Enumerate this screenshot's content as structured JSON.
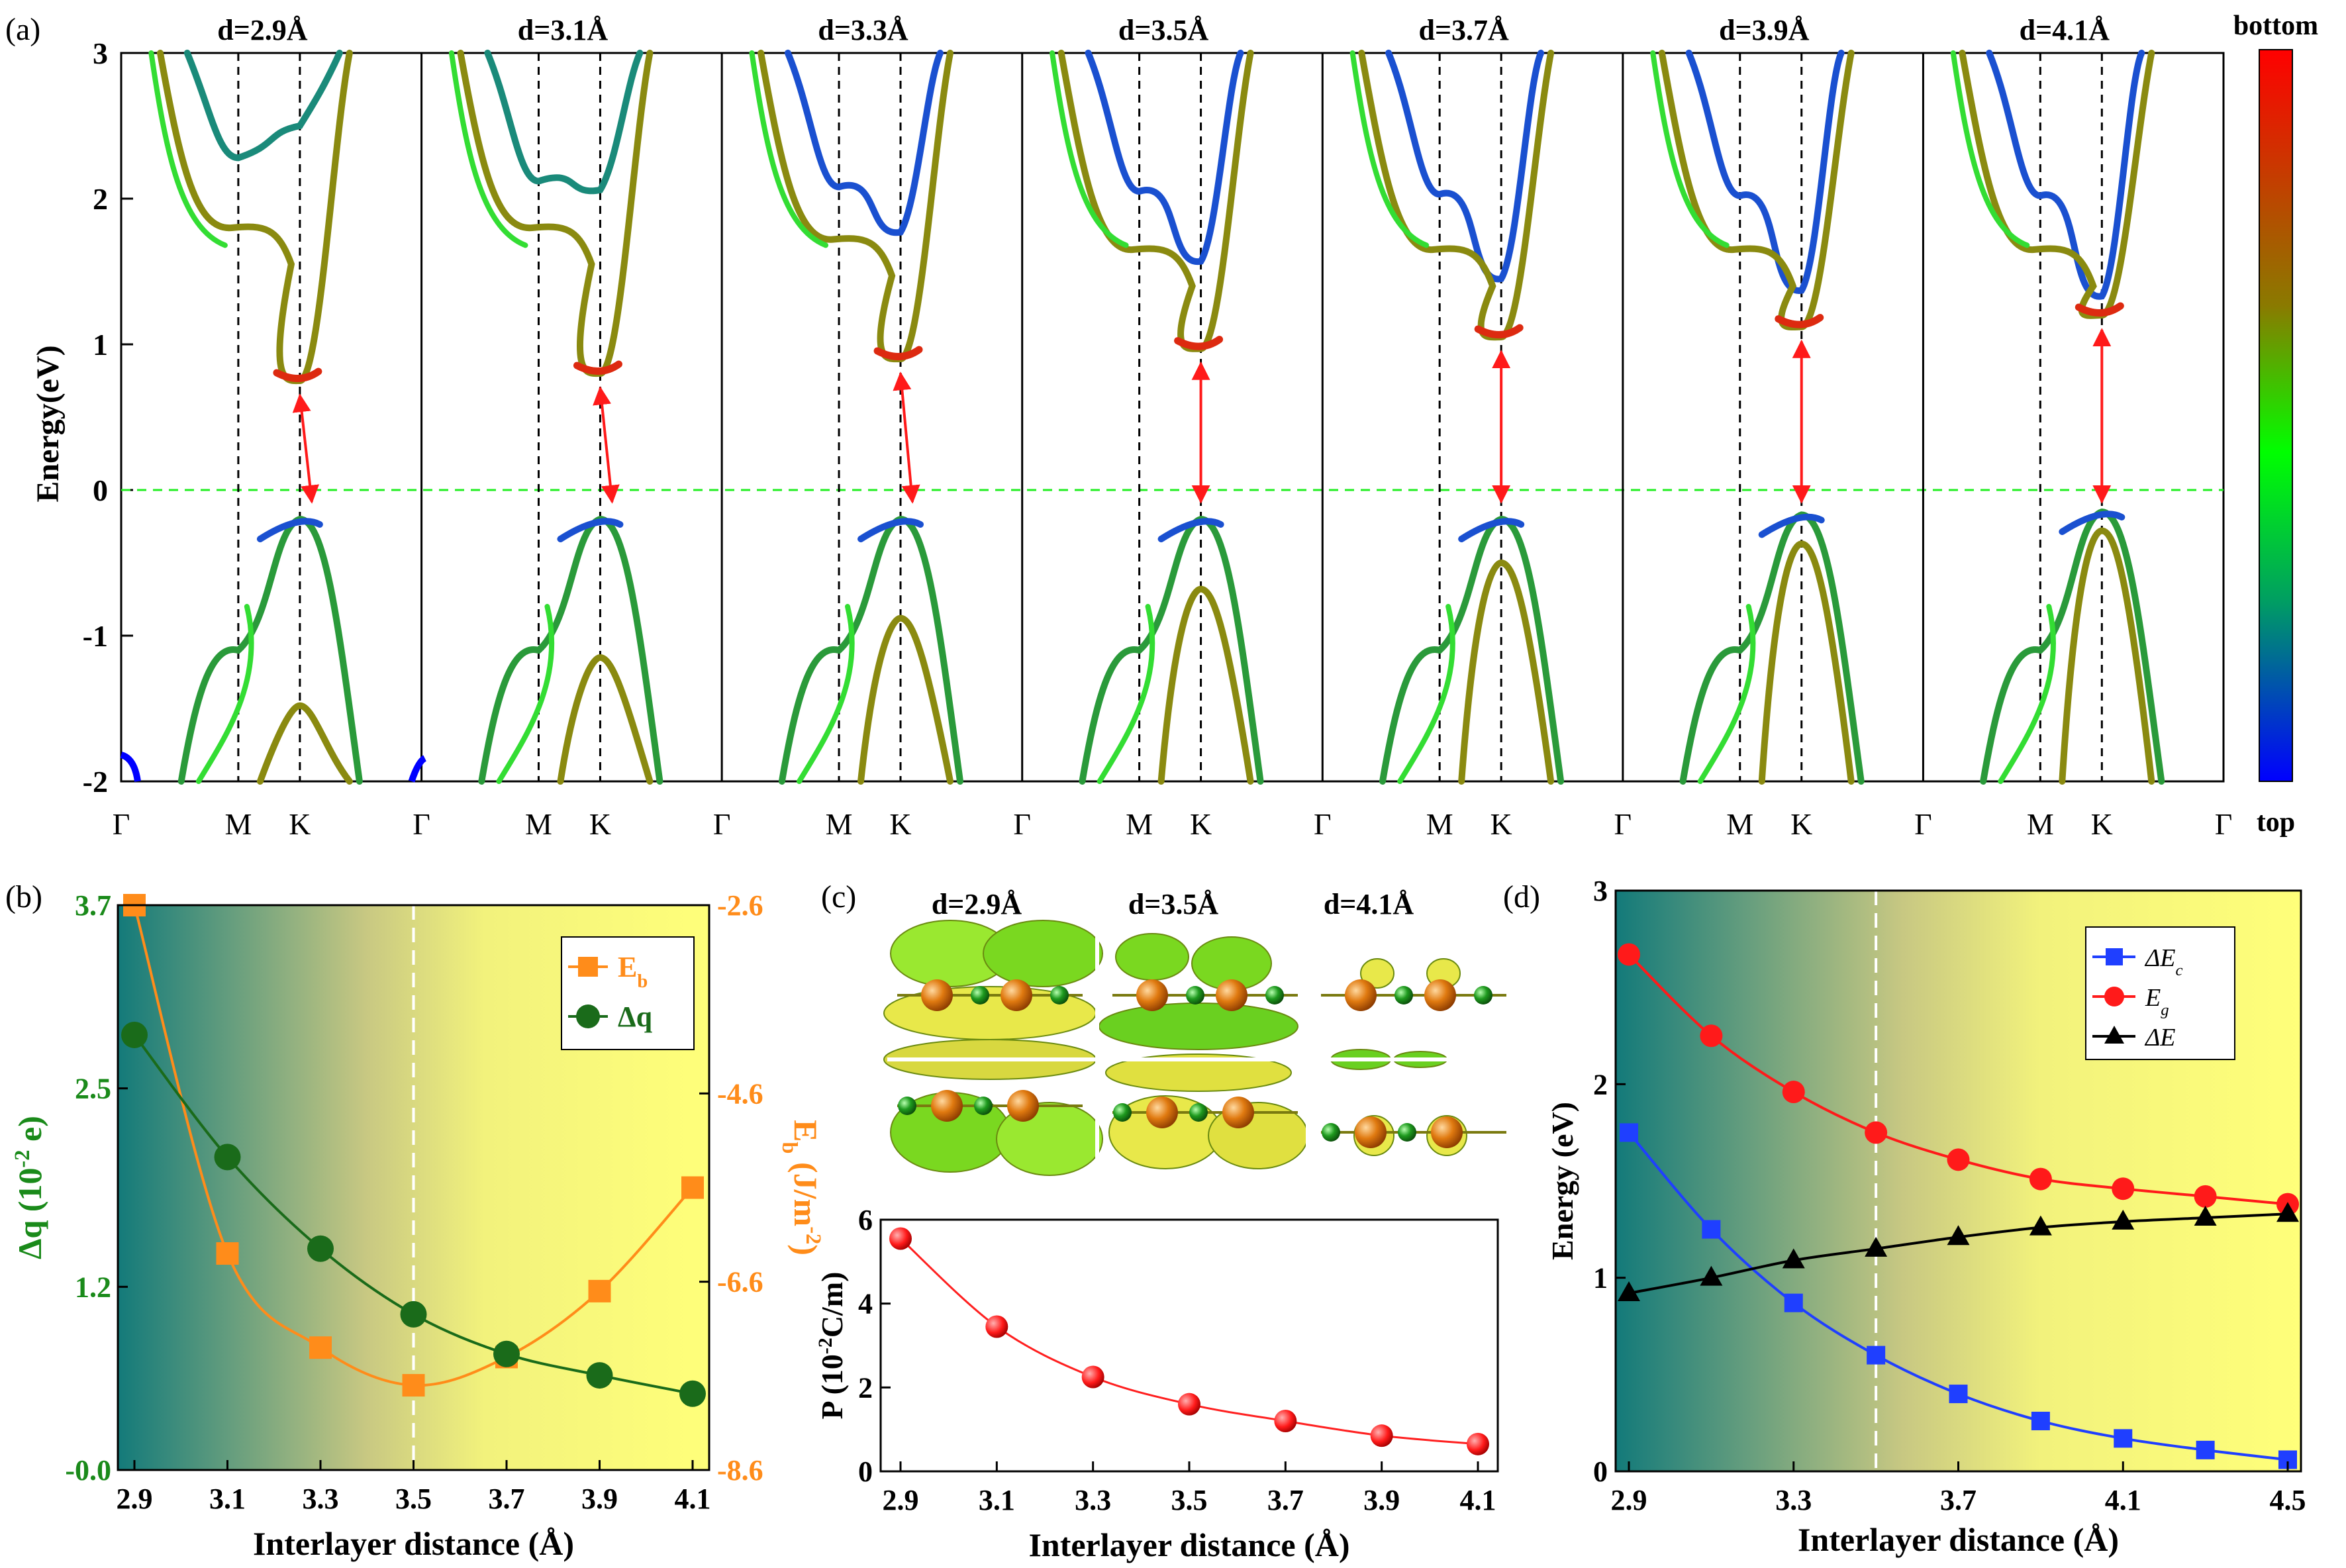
{
  "chart_data": [
    {
      "panel": "(a)",
      "type": "line",
      "ylabel": "Energy(eV)",
      "ylim": [
        -2,
        3
      ],
      "yticks": [
        "-2",
        "-1",
        "0",
        "1",
        "2",
        "3"
      ],
      "kpoints": [
        "Γ",
        "M",
        "K",
        "Γ"
      ],
      "colorbar": {
        "top_label": "bottom",
        "bottom_label": "top",
        "colors": [
          "#ff0000",
          "#8a7a00",
          "#00ff00",
          "#0000ff"
        ]
      },
      "subpanels": [
        {
          "title": "d=2.9Å",
          "d": 2.9,
          "cbm_K": 0.75,
          "vbm_K": -0.2,
          "cb2_K": 2.5,
          "cb2_M": 2.28,
          "cbM_flat": 1.8,
          "vb2_K": -1.48
        },
        {
          "title": "d=3.1Å",
          "d": 3.1,
          "cbm_K": 0.8,
          "vbm_K": -0.2,
          "cb2_K": 2.06,
          "cb2_M": 2.12,
          "cbM_flat": 1.8,
          "vb2_K": -1.15
        },
        {
          "title": "d=3.3Å",
          "d": 3.3,
          "cbm_K": 0.9,
          "vbm_K": -0.2,
          "cb2_K": 1.77,
          "cb2_M": 2.08,
          "cbM_flat": 1.72,
          "vb2_K": -0.88
        },
        {
          "title": "d=3.5Å",
          "d": 3.5,
          "cbm_K": 0.97,
          "vbm_K": -0.2,
          "cb2_K": 1.57,
          "cb2_M": 2.05,
          "cbM_flat": 1.65,
          "vb2_K": -0.68
        },
        {
          "title": "d=3.7Å",
          "d": 3.7,
          "cbm_K": 1.05,
          "vbm_K": -0.2,
          "cb2_K": 1.45,
          "cb2_M": 2.03,
          "cbM_flat": 1.65,
          "vb2_K": -0.5
        },
        {
          "title": "d=3.9Å",
          "d": 3.9,
          "cbm_K": 1.12,
          "vbm_K": -0.17,
          "cb2_K": 1.37,
          "cb2_M": 2.02,
          "cbM_flat": 1.65,
          "vb2_K": -0.37
        },
        {
          "title": "d=4.1Å",
          "d": 4.1,
          "cbm_K": 1.2,
          "vbm_K": -0.15,
          "cb2_K": 1.33,
          "cb2_M": 2.02,
          "cbM_flat": 1.65,
          "vb2_K": -0.28
        }
      ]
    },
    {
      "panel": "(b)",
      "type": "line",
      "xlabel": "Interlayer distance (Å)",
      "ylabel_left": "Δq (10⁻² e)",
      "ylabel_right": "Eb (J/m⁻²)",
      "x": [
        2.9,
        3.1,
        3.3,
        3.5,
        3.7,
        3.9,
        4.1
      ],
      "xticks": [
        "2.9",
        "3.1",
        "3.3",
        "3.5",
        "3.7",
        "3.9",
        "4.1"
      ],
      "ylim_left": [
        0,
        3.7
      ],
      "yticks_left": [
        "-0.0",
        "1.2",
        "2.5",
        "3.7"
      ],
      "ylim_right": [
        -8.6,
        -2.6
      ],
      "yticks_right": [
        "-8.6",
        "-6.6",
        "-4.6",
        "-2.6"
      ],
      "series": [
        {
          "name": "Eb",
          "axis": "right",
          "color": "#ff8c1a",
          "values": [
            -2.6,
            -6.3,
            -7.3,
            -7.7,
            -7.4,
            -6.7,
            -5.6
          ]
        },
        {
          "name": "Δq",
          "axis": "left",
          "color": "#1a6b1a",
          "values": [
            2.85,
            2.05,
            1.45,
            1.02,
            0.76,
            0.62,
            0.5
          ]
        }
      ],
      "vline_x": 3.5,
      "legend": "top-right"
    },
    {
      "panel": "(c)",
      "type": "line",
      "xlabel": "Interlayer distance (Å)",
      "ylabel": "P (10⁻²C/m)",
      "x": [
        2.9,
        3.1,
        3.3,
        3.5,
        3.7,
        3.9,
        4.1
      ],
      "xticks": [
        "2.9",
        "3.1",
        "3.3",
        "3.5",
        "3.7",
        "3.9",
        "4.1"
      ],
      "ylim": [
        0,
        6
      ],
      "yticks": [
        "0",
        "2",
        "4",
        "6"
      ],
      "series": [
        {
          "color": "#ff2020",
          "values": [
            5.55,
            3.45,
            2.25,
            1.6,
            1.2,
            0.85,
            0.65
          ]
        }
      ],
      "inset_titles": [
        "d=2.9Å",
        "d=3.5Å",
        "d=4.1Å"
      ]
    },
    {
      "panel": "(d)",
      "type": "line",
      "xlabel": "Interlayer distance  (Å)",
      "ylabel": "Energy (eV)",
      "x": [
        2.9,
        3.1,
        3.3,
        3.5,
        3.7,
        3.9,
        4.1,
        4.3,
        4.5
      ],
      "xticks": [
        "2.9",
        "3.3",
        "3.7",
        "4.1",
        "4.5"
      ],
      "ylim": [
        0,
        3
      ],
      "yticks": [
        "0",
        "1",
        "2",
        "3"
      ],
      "series": [
        {
          "name": "ΔEc",
          "color": "#1f3fff",
          "marker": "square",
          "values": [
            1.75,
            1.25,
            0.87,
            0.6,
            0.4,
            0.26,
            0.17,
            0.11,
            0.06
          ]
        },
        {
          "name": "Eg",
          "color": "#ff1a1a",
          "marker": "circle",
          "values": [
            2.67,
            2.25,
            1.96,
            1.75,
            1.61,
            1.51,
            1.46,
            1.42,
            1.38
          ]
        },
        {
          "name": "ΔE",
          "color": "#000000",
          "marker": "triangle",
          "values": [
            0.92,
            1.0,
            1.09,
            1.15,
            1.21,
            1.26,
            1.29,
            1.31,
            1.33
          ]
        }
      ],
      "vline_x": 3.5,
      "legend": "top-right"
    }
  ],
  "labels": {
    "panel_a": "(a)",
    "panel_b": "(b)",
    "panel_c": "(c)",
    "panel_d": "(d)",
    "b_eb_main": "E",
    "b_eb_sub": "b",
    "b_dq": "Δq",
    "b_ylab_left_main": "Δq (10",
    "b_ylab_left_sup": "-2",
    "b_ylab_left_end": " e)",
    "b_ylab_right_main": "E",
    "b_ylab_right_sub": "b",
    "b_ylab_right_mid": " (J/m",
    "b_ylab_right_sup": "-2",
    "b_ylab_right_end": ")",
    "c_ylab_main": "P (10",
    "c_ylab_sup": "-2",
    "c_ylab_end": "C/m)",
    "d_leg_dec_main": "ΔE",
    "d_leg_dec_sub": "c",
    "d_leg_eg_main": "E",
    "d_leg_eg_sub": "g",
    "d_leg_de": "ΔE"
  }
}
